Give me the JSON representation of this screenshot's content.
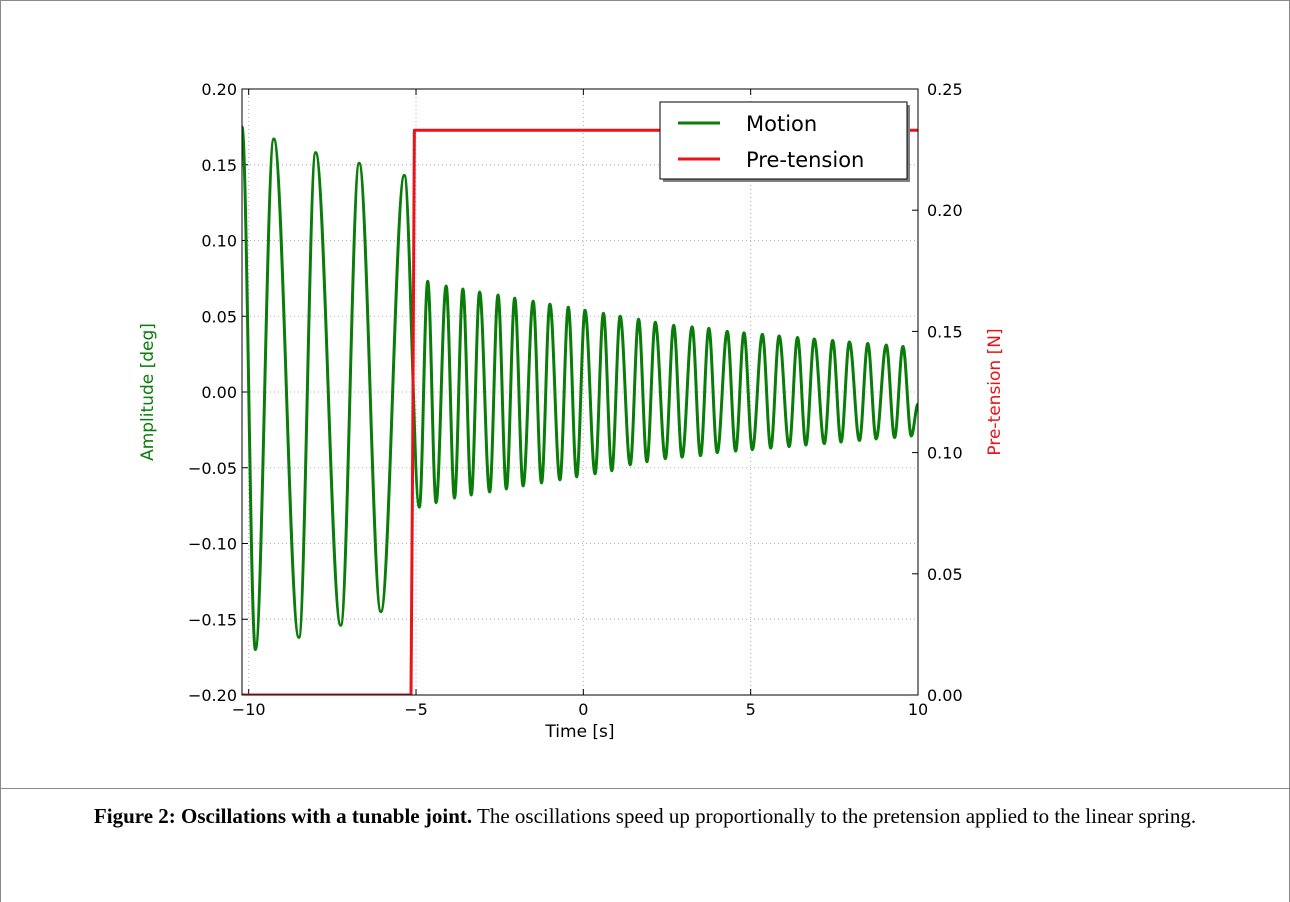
{
  "colors": {
    "motion": "#0a7c0a",
    "pretension": "#e8141a",
    "grid": "#b0b0b0",
    "axes": "#000000"
  },
  "figure": {
    "caption_title": "Figure 2: Oscillations with a tunable joint.",
    "caption_text": " The oscillations speed up proportionally to the pretension applied to the linear spring."
  },
  "chart_data": {
    "type": "line",
    "title": "",
    "xlabel": "Time [s]",
    "ylabel": "Amplitude [deg]",
    "y2label": "Pre-tension [N]",
    "xlim": [
      -10.2,
      10
    ],
    "ylim": [
      -0.2,
      0.2
    ],
    "y2lim": [
      0.0,
      0.25
    ],
    "xticks": [
      -10,
      -5,
      0,
      5,
      10
    ],
    "xtick_labels": [
      "−10",
      "−5",
      "0",
      "5",
      "10"
    ],
    "yticks": [
      -0.2,
      -0.15,
      -0.1,
      -0.05,
      0.0,
      0.05,
      0.1,
      0.15,
      0.2
    ],
    "ytick_labels": [
      "−0.20",
      "−0.15",
      "−0.10",
      "−0.05",
      "0.00",
      "0.05",
      "0.10",
      "0.15",
      "0.20"
    ],
    "y2ticks": [
      0.0,
      0.05,
      0.1,
      0.15,
      0.2,
      0.25
    ],
    "y2tick_labels": [
      "0.00",
      "0.05",
      "0.10",
      "0.15",
      "0.20",
      "0.25"
    ],
    "grid": true,
    "legend_position": "top-right",
    "series": [
      {
        "name": "Motion",
        "axis": "left",
        "color": "#0a7c0a",
        "x": [
          -10.2,
          -9.8,
          -9.25,
          -8.5,
          -8.0,
          -7.25,
          -6.7,
          -6.05,
          -5.35,
          -4.9,
          -4.65,
          -4.4,
          -4.1,
          -3.85,
          -3.6,
          -3.35,
          -3.1,
          -2.8,
          -2.55,
          -2.3,
          -2.05,
          -1.8,
          -1.5,
          -1.25,
          -1.0,
          -0.7,
          -0.45,
          -0.2,
          0.05,
          0.35,
          0.6,
          0.85,
          1.1,
          1.4,
          1.65,
          1.9,
          2.15,
          2.45,
          2.7,
          2.95,
          3.25,
          3.5,
          3.75,
          4.0,
          4.3,
          4.55,
          4.8,
          5.05,
          5.35,
          5.6,
          5.85,
          6.15,
          6.4,
          6.65,
          6.9,
          7.2,
          7.45,
          7.7,
          7.95,
          8.25,
          8.5,
          8.75,
          9.05,
          9.3,
          9.55,
          9.8,
          10.0
        ],
        "y": [
          0.175,
          -0.17,
          0.167,
          -0.162,
          0.158,
          -0.154,
          0.151,
          -0.145,
          0.143,
          -0.076,
          0.073,
          -0.073,
          0.07,
          -0.07,
          0.068,
          -0.068,
          0.066,
          -0.066,
          0.064,
          -0.064,
          0.062,
          -0.062,
          0.06,
          -0.06,
          0.058,
          -0.058,
          0.056,
          -0.056,
          0.054,
          -0.054,
          0.052,
          -0.052,
          0.05,
          -0.048,
          0.048,
          -0.046,
          0.046,
          -0.044,
          0.044,
          -0.043,
          0.043,
          -0.042,
          0.042,
          -0.04,
          0.04,
          -0.039,
          0.039,
          -0.038,
          0.038,
          -0.037,
          0.037,
          -0.036,
          0.036,
          -0.035,
          0.035,
          -0.034,
          0.034,
          -0.033,
          0.033,
          -0.032,
          0.032,
          -0.031,
          0.031,
          -0.03,
          0.03,
          -0.029,
          -0.008
        ]
      },
      {
        "name": "Pre-tension",
        "axis": "right",
        "color": "#e8141a",
        "x": [
          -10.2,
          -5.15,
          -5.1,
          -5.05,
          10.0
        ],
        "y": [
          0.0,
          0.0,
          0.1,
          0.233,
          0.233
        ]
      }
    ]
  }
}
